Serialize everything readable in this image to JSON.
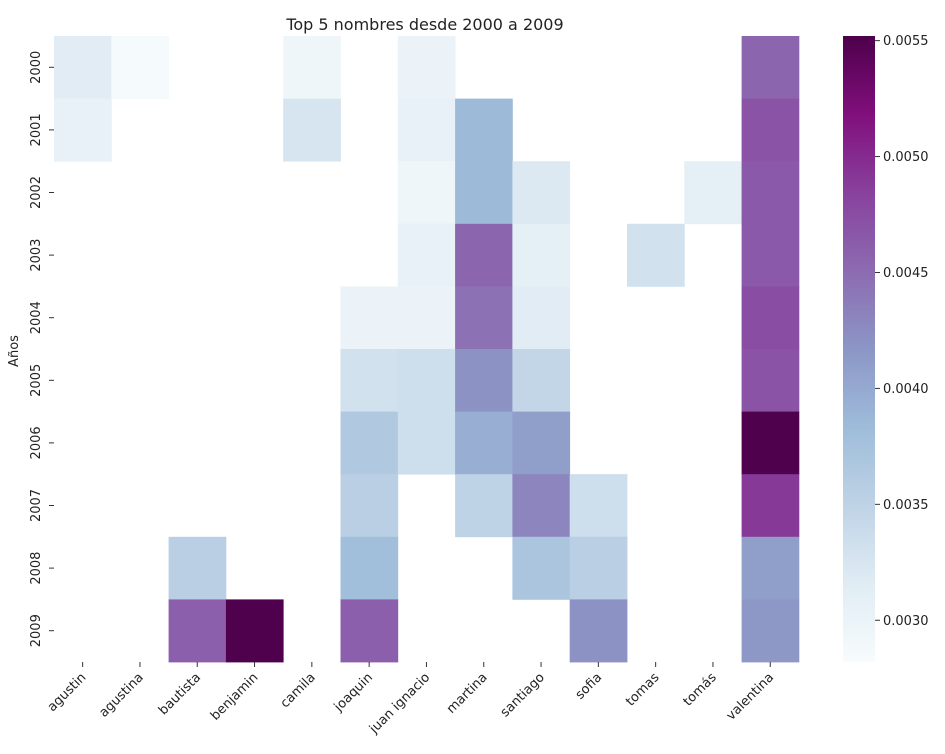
{
  "chart_data": {
    "type": "heatmap",
    "title": "Top 5 nombres desde 2000 a 2009",
    "ylabel": "Años",
    "xlabel": "",
    "x_categories": [
      "agustin",
      "agustina",
      "bautista",
      "benjamin",
      "camila",
      "joaquin",
      "juan ignacio",
      "martina",
      "santiago",
      "sofia",
      "tomas",
      "tomás",
      "valentina"
    ],
    "y_categories": [
      "2000",
      "2001",
      "2002",
      "2003",
      "2004",
      "2005",
      "2006",
      "2007",
      "2008",
      "2009"
    ],
    "values": [
      [
        0.00315,
        0.00285,
        null,
        null,
        0.00295,
        null,
        0.003,
        null,
        null,
        null,
        null,
        null,
        0.00455
      ],
      [
        0.00305,
        null,
        null,
        null,
        0.00325,
        null,
        0.00305,
        0.00385,
        null,
        null,
        null,
        null,
        0.0047
      ],
      [
        null,
        null,
        null,
        null,
        null,
        null,
        0.00295,
        0.00385,
        0.0032,
        null,
        null,
        0.0031,
        0.00465
      ],
      [
        null,
        null,
        null,
        null,
        null,
        null,
        0.00305,
        0.00455,
        0.0031,
        null,
        0.0033,
        null,
        0.00465
      ],
      [
        null,
        null,
        null,
        null,
        null,
        0.003,
        0.003,
        0.00445,
        0.00315,
        null,
        null,
        null,
        0.00475
      ],
      [
        null,
        null,
        null,
        null,
        null,
        0.0033,
        0.00335,
        0.0042,
        0.00345,
        null,
        null,
        null,
        0.0047
      ],
      [
        null,
        null,
        null,
        null,
        null,
        0.00365,
        0.00335,
        0.00395,
        0.0041,
        null,
        null,
        null,
        0.0055
      ],
      [
        null,
        null,
        null,
        null,
        null,
        0.00355,
        null,
        0.0035,
        0.0043,
        0.00335,
        null,
        null,
        0.0049
      ],
      [
        null,
        null,
        0.00355,
        null,
        null,
        0.0038,
        null,
        null,
        0.0037,
        0.00355,
        null,
        null,
        0.0041
      ],
      [
        null,
        null,
        0.0046,
        0.0055,
        null,
        0.0046,
        null,
        null,
        null,
        0.0042,
        null,
        null,
        0.00415
      ]
    ],
    "colorbar": {
      "min": 0.00282,
      "max": 0.00552,
      "ticks": [
        "0.0030",
        "0.0035",
        "0.0040",
        "0.0045",
        "0.0050",
        "0.0055"
      ]
    },
    "colormap": "BuPu",
    "colors": [
      "#f7fcfd",
      "#e0ecf4",
      "#bfd3e6",
      "#9ebcda",
      "#8c96c6",
      "#8c6bb1",
      "#88419d",
      "#810f7c",
      "#4d004b"
    ],
    "grid": false,
    "legend": "colorbar-right"
  }
}
